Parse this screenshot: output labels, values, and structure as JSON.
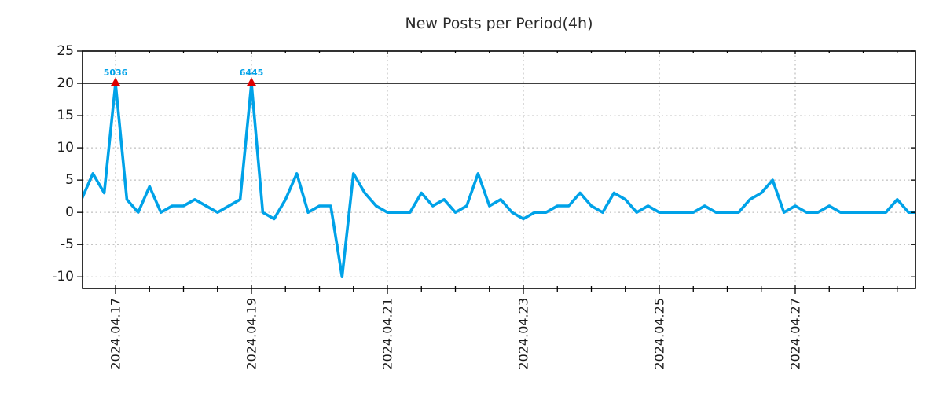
{
  "title": "New Posts per Period(4h)",
  "chart_data": {
    "type": "line",
    "title": "New Posts per Period(4h)",
    "period_hours": 4,
    "values": [
      2,
      6,
      3,
      20,
      2,
      0,
      4,
      0,
      1,
      1,
      2,
      1,
      0,
      1,
      2,
      20,
      0,
      -1,
      2,
      6,
      0,
      1,
      1,
      -10,
      6,
      3,
      1,
      0,
      0,
      0,
      3,
      1,
      2,
      0,
      1,
      6,
      1,
      2,
      0,
      -1,
      0,
      0,
      1,
      1,
      3,
      1,
      0,
      3,
      2,
      0,
      1,
      0,
      0,
      0,
      0,
      1,
      0,
      0,
      0,
      2,
      3,
      5,
      0,
      1,
      0,
      0,
      1,
      0,
      0,
      0,
      0,
      0,
      2,
      0,
      0
    ],
    "x_major_ticks": [
      {
        "label": "2024.04.17",
        "index": 3
      },
      {
        "label": "2024.04.19",
        "index": 15
      },
      {
        "label": "2024.04.21",
        "index": 27
      },
      {
        "label": "2024.04.23",
        "index": 39
      },
      {
        "label": "2024.04.25",
        "index": 51
      },
      {
        "label": "2024.04.27",
        "index": 63
      }
    ],
    "x_minor_tick_every_indices": 3,
    "y_ticks": [
      25,
      20,
      15,
      10,
      5,
      0,
      -5,
      -10
    ],
    "ylim": [
      -11.8,
      25
    ],
    "grid": true,
    "threshold_line_value": 20,
    "clip_value": 20,
    "annotations": [
      {
        "text": "5036",
        "index": 3,
        "value": 20
      },
      {
        "text": "6445",
        "index": 15,
        "value": 20
      }
    ],
    "colors": {
      "series": "#00a2e8",
      "marker": "#dd0000",
      "grid": "#b0b0b0",
      "axis": "#000000",
      "threshold": "#000000",
      "tick_text": "#1a1a1a",
      "title_text": "#2b2b2b"
    }
  }
}
